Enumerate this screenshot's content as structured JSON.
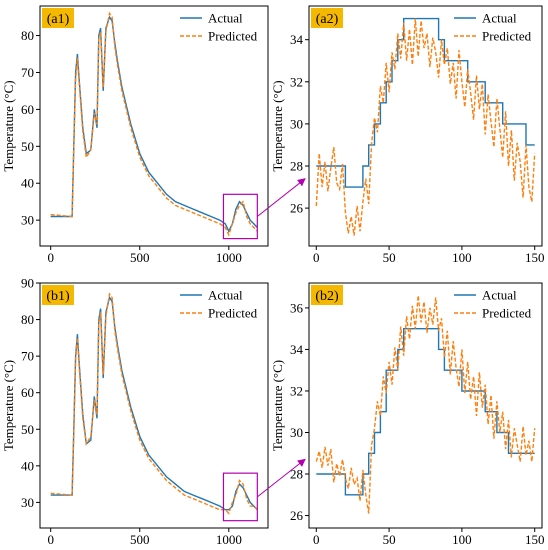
{
  "colors": {
    "actual": "#1f77b4",
    "predicted": "#ff7f0e",
    "highlight": "#b000b0",
    "label_bg": "#f5b800"
  },
  "chart_data": [
    {
      "id": "a1",
      "type": "line",
      "panel_label": "(a1)",
      "ylabel": "Temperature (°C)",
      "xlim": [
        -60,
        1220
      ],
      "ylim": [
        23,
        88
      ],
      "xticks": [
        0,
        500,
        1000
      ],
      "yticks": [
        30,
        40,
        50,
        60,
        70,
        80
      ],
      "highlight_box": {
        "x": [
          970,
          1160
        ],
        "y": [
          25,
          37
        ]
      },
      "series": [
        {
          "name": "Actual",
          "style": "solid",
          "x": [
            0,
            120,
            130,
            140,
            150,
            160,
            180,
            200,
            225,
            245,
            260,
            270,
            280,
            295,
            310,
            330,
            345,
            360,
            375,
            400,
            450,
            500,
            550,
            600,
            650,
            700,
            750,
            800,
            850,
            900,
            950,
            980,
            1000,
            1020,
            1040,
            1060,
            1080,
            1100,
            1120,
            1140,
            1160
          ],
          "y": [
            31,
            31,
            50,
            70,
            75,
            68,
            55,
            48,
            49,
            60,
            55,
            80,
            82,
            65,
            82,
            85,
            84,
            78,
            73,
            66,
            56,
            48,
            43,
            40,
            37,
            35,
            34,
            33,
            32,
            31,
            30,
            29,
            27,
            29,
            33,
            35,
            34,
            32,
            30,
            29,
            28
          ]
        },
        {
          "name": "Predicted",
          "style": "dashed",
          "x": [
            0,
            120,
            130,
            140,
            150,
            160,
            180,
            200,
            225,
            245,
            260,
            270,
            280,
            295,
            310,
            330,
            345,
            360,
            375,
            400,
            450,
            500,
            550,
            600,
            650,
            700,
            750,
            800,
            850,
            900,
            950,
            980,
            1000,
            1020,
            1040,
            1060,
            1080,
            1100,
            1120,
            1140,
            1160
          ],
          "y": [
            31.5,
            31,
            50,
            68,
            74,
            67,
            54,
            47,
            49,
            59,
            56,
            79,
            81,
            66,
            81,
            86,
            85,
            77,
            72,
            65,
            55,
            47,
            42,
            39,
            36,
            34,
            33,
            32,
            31,
            30,
            29,
            28,
            26,
            29,
            32,
            34,
            35,
            31,
            29,
            28,
            27
          ]
        }
      ]
    },
    {
      "id": "a2",
      "type": "line",
      "panel_label": "(a2)",
      "ylabel": "Temperature (°C)",
      "xlim": [
        -5,
        155
      ],
      "ylim": [
        24.2,
        35.6
      ],
      "xticks": [
        0,
        50,
        100,
        150
      ],
      "yticks": [
        26,
        28,
        30,
        32,
        34
      ],
      "series": [
        {
          "name": "Actual",
          "style": "solid",
          "x": [
            0,
            20,
            20,
            32,
            32,
            36,
            36,
            40,
            40,
            44,
            44,
            48,
            48,
            52,
            52,
            56,
            56,
            60,
            60,
            84,
            84,
            88,
            88,
            104,
            104,
            116,
            116,
            128,
            128,
            144,
            144,
            150
          ],
          "y": [
            28,
            28,
            27,
            27,
            28,
            28,
            29,
            29,
            30,
            30,
            31,
            31,
            32,
            32,
            33,
            33,
            34,
            34,
            35,
            35,
            34,
            34,
            33,
            33,
            32,
            32,
            31,
            31,
            30,
            30,
            29,
            29
          ]
        },
        {
          "name": "Predicted",
          "style": "dashed",
          "x": [
            0,
            2,
            4,
            6,
            8,
            10,
            12,
            14,
            16,
            18,
            20,
            22,
            24,
            26,
            28,
            30,
            32,
            34,
            36,
            38,
            40,
            42,
            44,
            46,
            48,
            50,
            52,
            54,
            56,
            58,
            60,
            62,
            64,
            66,
            68,
            70,
            72,
            74,
            76,
            78,
            80,
            82,
            84,
            86,
            88,
            90,
            92,
            94,
            96,
            98,
            100,
            102,
            104,
            106,
            108,
            110,
            112,
            114,
            116,
            118,
            120,
            122,
            124,
            126,
            128,
            130,
            132,
            134,
            136,
            138,
            140,
            142,
            144,
            146,
            148,
            150
          ],
          "y": [
            26.1,
            28.6,
            27.0,
            28.2,
            26.8,
            27.9,
            28.9,
            27.2,
            26.9,
            28.1,
            25.8,
            24.8,
            25.6,
            24.7,
            26.1,
            24.9,
            26.3,
            27.4,
            26.2,
            29.1,
            30.3,
            29.6,
            31.8,
            31.0,
            32.9,
            31.5,
            33.4,
            32.6,
            34.3,
            33.1,
            34.8,
            33.0,
            34.5,
            32.8,
            35.0,
            33.2,
            34.9,
            33.6,
            34.3,
            32.7,
            34.1,
            33.4,
            32.2,
            34.0,
            32.8,
            33.6,
            31.9,
            32.9,
            31.2,
            33.5,
            32.0,
            30.8,
            32.6,
            31.5,
            30.2,
            32.3,
            30.7,
            31.9,
            29.5,
            31.4,
            30.1,
            28.9,
            31.2,
            29.8,
            28.4,
            30.6,
            28.0,
            29.7,
            27.3,
            29.1,
            28.2,
            26.5,
            29.0,
            27.0,
            26.3,
            28.6
          ]
        }
      ]
    },
    {
      "id": "b1",
      "type": "line",
      "panel_label": "(b1)",
      "ylabel": "Temperature (°C)",
      "xlim": [
        -60,
        1220
      ],
      "ylim": [
        23,
        90
      ],
      "xticks": [
        0,
        500,
        1000
      ],
      "yticks": [
        30,
        40,
        50,
        60,
        70,
        80,
        90
      ],
      "highlight_box": {
        "x": [
          970,
          1160
        ],
        "y": [
          25,
          38
        ]
      },
      "series": [
        {
          "name": "Actual",
          "style": "solid",
          "x": [
            0,
            120,
            130,
            140,
            150,
            160,
            180,
            200,
            225,
            245,
            260,
            270,
            280,
            295,
            310,
            330,
            345,
            360,
            375,
            400,
            450,
            500,
            550,
            600,
            650,
            700,
            750,
            800,
            850,
            900,
            950,
            980,
            1000,
            1020,
            1040,
            1060,
            1080,
            1100,
            1120,
            1140,
            1160
          ],
          "y": [
            32,
            32,
            50,
            70,
            76,
            68,
            54,
            46,
            47,
            59,
            53,
            80,
            83,
            64,
            82,
            86,
            85,
            78,
            73,
            66,
            56,
            48,
            43,
            40,
            37,
            35,
            33,
            32,
            31,
            30,
            29,
            28,
            28,
            29,
            33,
            35,
            34,
            32,
            30,
            29,
            28
          ]
        },
        {
          "name": "Predicted",
          "style": "dashed",
          "x": [
            0,
            120,
            130,
            140,
            150,
            160,
            180,
            200,
            225,
            245,
            260,
            270,
            280,
            295,
            310,
            330,
            345,
            360,
            375,
            400,
            450,
            500,
            550,
            600,
            650,
            700,
            750,
            800,
            850,
            900,
            950,
            980,
            1000,
            1020,
            1040,
            1060,
            1080,
            1100,
            1120,
            1140,
            1160
          ],
          "y": [
            32.5,
            32,
            49,
            69,
            75,
            67,
            53,
            46,
            48,
            58,
            54,
            79,
            82,
            65,
            81,
            87,
            86,
            77,
            72,
            65,
            55,
            47,
            42,
            39,
            36,
            34,
            32,
            31,
            30,
            29,
            28,
            28,
            27,
            30,
            32,
            36,
            35,
            31,
            29,
            29,
            28
          ]
        }
      ]
    },
    {
      "id": "b2",
      "type": "line",
      "panel_label": "(b2)",
      "ylabel": "Temperature (°C)",
      "xlim": [
        -5,
        155
      ],
      "ylim": [
        25.4,
        37.2
      ],
      "xticks": [
        0,
        50,
        100,
        150
      ],
      "yticks": [
        26,
        28,
        30,
        32,
        34,
        36
      ],
      "series": [
        {
          "name": "Actual",
          "style": "solid",
          "x": [
            0,
            20,
            20,
            32,
            32,
            36,
            36,
            40,
            40,
            44,
            44,
            48,
            48,
            56,
            56,
            60,
            60,
            84,
            84,
            88,
            88,
            100,
            100,
            116,
            116,
            124,
            124,
            132,
            132,
            140,
            140,
            150
          ],
          "y": [
            28,
            28,
            27,
            27,
            28,
            28,
            29,
            29,
            30,
            30,
            31,
            31,
            33,
            33,
            34,
            34,
            35,
            35,
            34,
            34,
            33,
            33,
            32,
            32,
            31,
            31,
            30,
            30,
            29,
            29,
            29,
            29
          ]
        },
        {
          "name": "Predicted",
          "style": "dashed",
          "x": [
            0,
            2,
            4,
            6,
            8,
            10,
            12,
            14,
            16,
            18,
            20,
            22,
            24,
            26,
            28,
            30,
            32,
            34,
            36,
            38,
            40,
            42,
            44,
            46,
            48,
            50,
            52,
            54,
            56,
            58,
            60,
            62,
            64,
            66,
            68,
            70,
            72,
            74,
            76,
            78,
            80,
            82,
            84,
            86,
            88,
            90,
            92,
            94,
            96,
            98,
            100,
            102,
            104,
            106,
            108,
            110,
            112,
            114,
            116,
            118,
            120,
            122,
            124,
            126,
            128,
            130,
            132,
            134,
            136,
            138,
            140,
            142,
            144,
            146,
            148,
            150
          ],
          "y": [
            28.6,
            29.1,
            28.3,
            29.3,
            28.4,
            29.2,
            27.6,
            28.5,
            27.9,
            28.7,
            27.8,
            27.3,
            28.3,
            27.5,
            27.8,
            26.7,
            28.2,
            27.0,
            26.1,
            29.4,
            30.2,
            31.5,
            30.8,
            32.7,
            31.9,
            33.4,
            32.3,
            34.1,
            33.0,
            35.1,
            33.7,
            35.6,
            34.5,
            36.1,
            35.0,
            36.6,
            35.3,
            36.3,
            34.8,
            36.0,
            35.2,
            36.5,
            34.9,
            35.5,
            33.6,
            34.9,
            32.8,
            34.4,
            33.1,
            32.2,
            34.0,
            31.9,
            33.4,
            31.6,
            32.7,
            30.8,
            32.9,
            31.2,
            32.3,
            30.4,
            31.8,
            29.7,
            31.5,
            30.0,
            31.0,
            29.2,
            30.6,
            28.8,
            30.2,
            29.4,
            28.6,
            30.3,
            28.9,
            29.6,
            28.6,
            30.2
          ]
        }
      ]
    }
  ]
}
